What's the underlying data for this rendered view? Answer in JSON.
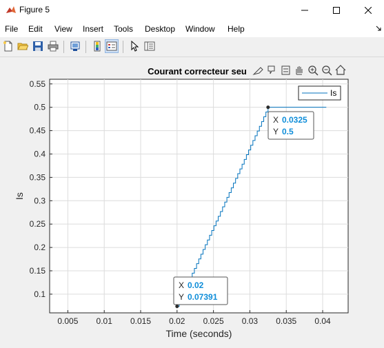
{
  "window": {
    "title": "Figure 5"
  },
  "menu": [
    "File",
    "Edit",
    "View",
    "Insert",
    "Tools",
    "Desktop",
    "Window",
    "Help"
  ],
  "axes_toolbar_icons": [
    "brush-icon",
    "data-tips-icon",
    "restore-view-icon",
    "pan-icon",
    "zoom-in-icon",
    "zoom-out-icon",
    "home-icon"
  ],
  "chart_data": {
    "type": "line",
    "title": "Courant correcteur seu",
    "xlabel": "Time (seconds)",
    "ylabel": "Is",
    "xlim": [
      0.0025,
      0.0435
    ],
    "ylim": [
      0.06,
      0.56
    ],
    "xticks": [
      0.005,
      0.01,
      0.015,
      0.02,
      0.025,
      0.03,
      0.035,
      0.04
    ],
    "xtick_labels": [
      "0.005",
      "0.01",
      "0.015",
      "0.02",
      "0.025",
      "0.03",
      "0.035",
      "0.04"
    ],
    "yticks": [
      0.1,
      0.15,
      0.2,
      0.25,
      0.3,
      0.35,
      0.4,
      0.45,
      0.5,
      0.55
    ],
    "ytick_labels": [
      "0.1",
      "0.15",
      "0.2",
      "0.25",
      "0.3",
      "0.35",
      "0.4",
      "0.45",
      "0.5",
      "0.55"
    ],
    "grid": true,
    "legend": {
      "entries": [
        "Is"
      ],
      "position": "top-right"
    },
    "line_color": "#0072bd",
    "series": [
      {
        "name": "Is",
        "x": [
          0.02,
          0.0325,
          0.0405
        ],
        "y": [
          0.07391,
          0.5,
          0.5
        ],
        "style": "staircase"
      }
    ],
    "datatips": [
      {
        "x_label": "X",
        "x_value": "0.02",
        "y_label": "Y",
        "y_value": "0.07391",
        "x": 0.02,
        "y": 0.07391
      },
      {
        "x_label": "X",
        "x_value": "0.0325",
        "y_label": "Y",
        "y_value": "0.5",
        "x": 0.0325,
        "y": 0.5
      }
    ]
  }
}
